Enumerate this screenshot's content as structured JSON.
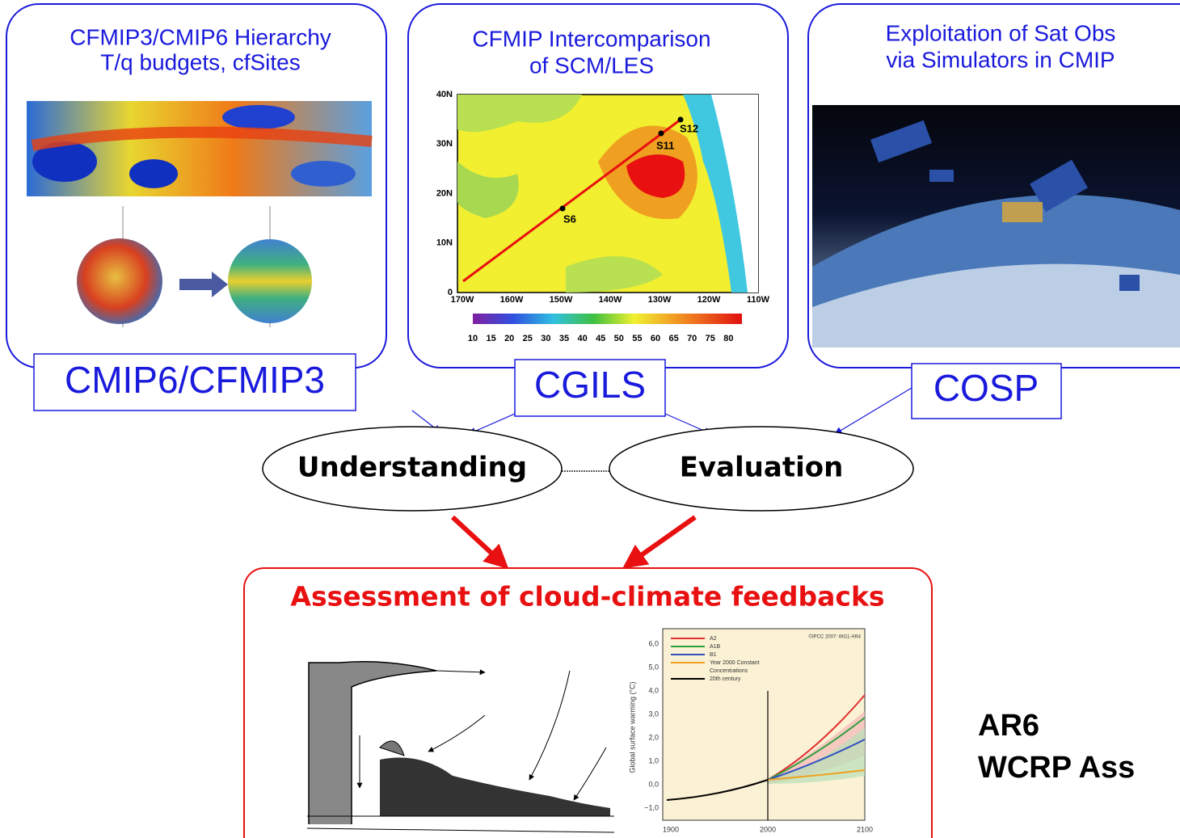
{
  "panels": [
    {
      "title_lines": [
        "CFMIP3/CMIP6 Hierarchy",
        "T/q budgets, cfSites"
      ],
      "label": "CMIP6/CFMIP3"
    },
    {
      "title_lines": [
        "CFMIP Intercomparison",
        "of SCM/LES"
      ],
      "label": "CGILS"
    },
    {
      "title_lines": [
        "Exploitation of Sat Obs",
        "via Simulators in CMIP"
      ],
      "label": "COSP"
    }
  ],
  "map": {
    "lat_labels": [
      "40N",
      "30N",
      "20N",
      "10N",
      "0"
    ],
    "lon_labels": [
      "170W",
      "160W",
      "150W",
      "140W",
      "130W",
      "120W",
      "110W"
    ],
    "colorbar_labels": [
      "10",
      "15",
      "20",
      "25",
      "30",
      "35",
      "40",
      "45",
      "50",
      "55",
      "60",
      "65",
      "70",
      "75",
      "80"
    ],
    "points": [
      "S12",
      "S11",
      "S6"
    ]
  },
  "process": {
    "left": "Understanding",
    "right": "Evaluation"
  },
  "assessment": {
    "title": "Assessment of cloud-climate feedbacks",
    "chart": {
      "y_label": "Global surface warming (°C)",
      "credit": "©IPCC 2007: WG1-AR4",
      "yticks": [
        "6,0",
        "5,0",
        "4,0",
        "3,0",
        "2,0",
        "1,0",
        "0,0",
        "−1,0"
      ],
      "xticks": [
        "1900",
        "2000",
        "2100"
      ],
      "legend": [
        "A2",
        "A1B",
        "B1",
        "Year 2000 Constant",
        "Concentrations",
        "20th century"
      ]
    }
  },
  "side_note": [
    "AR6",
    "WCRP Ass"
  ]
}
